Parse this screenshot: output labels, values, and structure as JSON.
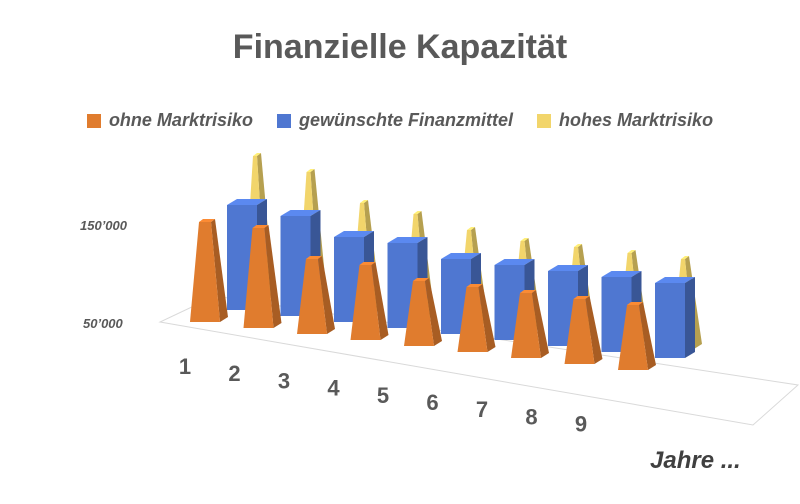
{
  "chart_data": {
    "type": "bar",
    "title": "Finanzielle Kapazität",
    "xlabel": "Jahre ...",
    "ylabel": "",
    "categories": [
      "1",
      "2",
      "3",
      "4",
      "5",
      "6",
      "7",
      "8",
      "9"
    ],
    "y_ticks": [
      "50’000",
      "150’000"
    ],
    "ylim": [
      50000,
      200000
    ],
    "legend_position": "top",
    "series": [
      {
        "name": "ohne Marktrisiko",
        "color": "#E07C2E",
        "values": [
          150000,
          150000,
          125000,
          125000,
          115000,
          115000,
          115000,
          115000,
          115000
        ]
      },
      {
        "name": "gewünschte Finanzmittel",
        "color": "#4F77D1",
        "values": [
          155000,
          150000,
          135000,
          135000,
          125000,
          125000,
          125000,
          125000,
          125000
        ]
      },
      {
        "name": "hohes Marktrisiko",
        "color": "#F2D56B",
        "values": [
          195000,
          185000,
          160000,
          155000,
          145000,
          140000,
          140000,
          140000,
          140000
        ]
      }
    ]
  }
}
